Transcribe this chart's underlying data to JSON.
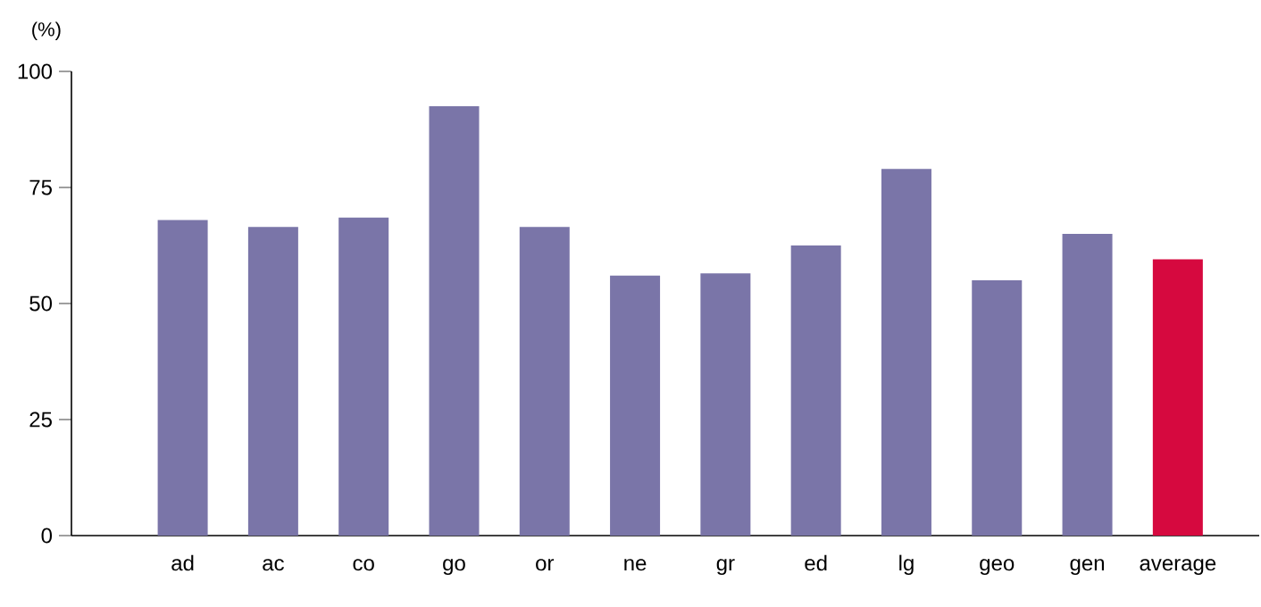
{
  "chart_data": {
    "type": "bar",
    "ylabel": "(%)",
    "categories": [
      "ad",
      "ac",
      "co",
      "go",
      "or",
      "ne",
      "gr",
      "ed",
      "lg",
      "geo",
      "gen",
      "average"
    ],
    "values": [
      68,
      66.5,
      68.5,
      92.5,
      66.5,
      56,
      56.5,
      62.5,
      79,
      55,
      65,
      59.5
    ],
    "colors": [
      "#7a75a8",
      "#7a75a8",
      "#7a75a8",
      "#7a75a8",
      "#7a75a8",
      "#7a75a8",
      "#7a75a8",
      "#7a75a8",
      "#7a75a8",
      "#7a75a8",
      "#7a75a8",
      "#d6093f"
    ],
    "ylim": [
      0,
      100
    ],
    "yticks": [
      0,
      25,
      50,
      75,
      100
    ],
    "grid": false
  }
}
